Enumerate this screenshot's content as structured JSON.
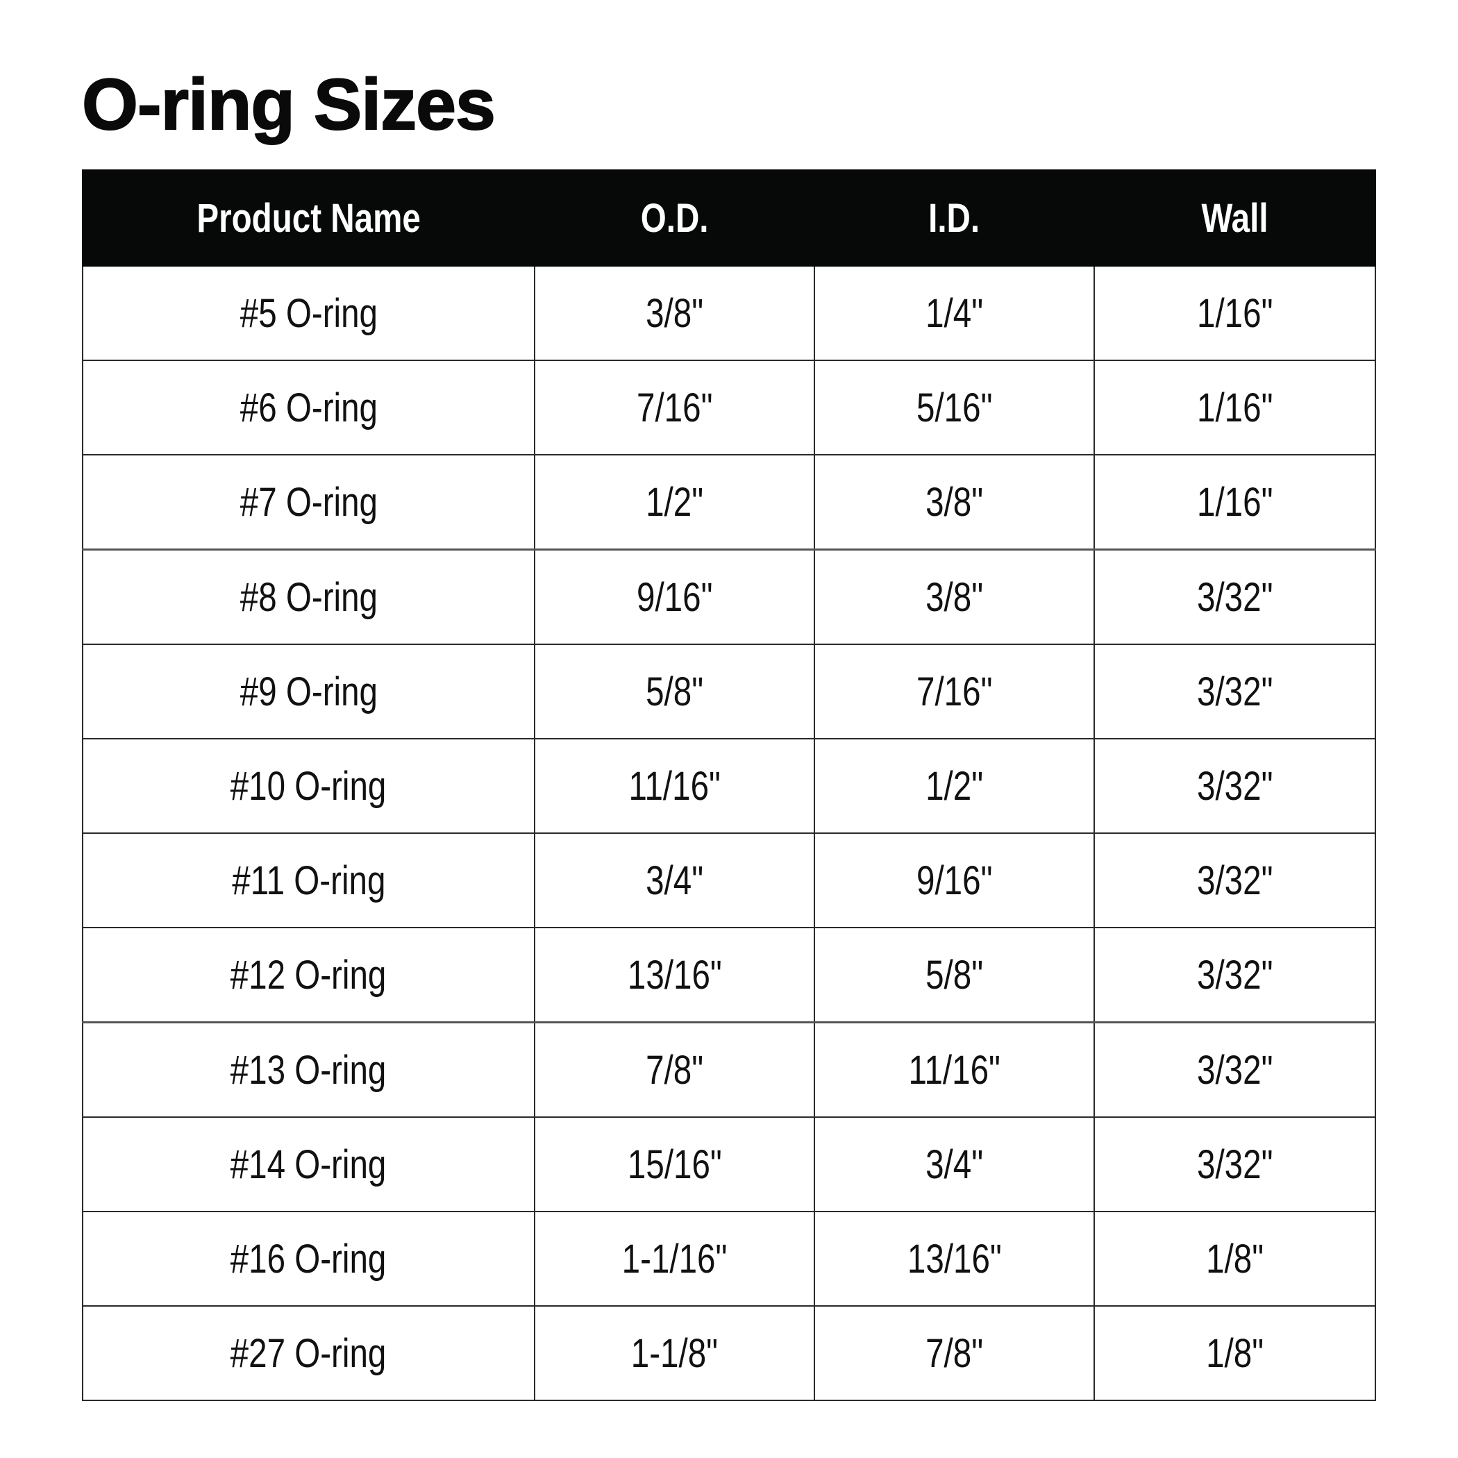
{
  "title": "O-ring Sizes",
  "table": {
    "headers": [
      "Product Name",
      "O.D.",
      "I.D.",
      "Wall"
    ],
    "rows": [
      [
        "#5 O-ring",
        "3/8\"",
        "1/4\"",
        "1/16\""
      ],
      [
        "#6 O-ring",
        "7/16\"",
        "5/16\"",
        "1/16\""
      ],
      [
        "#7 O-ring",
        "1/2\"",
        "3/8\"",
        "1/16\""
      ],
      [
        "#8 O-ring",
        "9/16\"",
        "3/8\"",
        "3/32\""
      ],
      [
        "#9 O-ring",
        "5/8\"",
        "7/16\"",
        "3/32\""
      ],
      [
        "#10 O-ring",
        "11/16\"",
        "1/2\"",
        "3/32\""
      ],
      [
        "#11 O-ring",
        "3/4\"",
        "9/16\"",
        "3/32\""
      ],
      [
        "#12 O-ring",
        "13/16\"",
        "5/8\"",
        "3/32\""
      ],
      [
        "#13 O-ring",
        "7/8\"",
        "11/16\"",
        "3/32\""
      ],
      [
        "#14 O-ring",
        "15/16\"",
        "3/4\"",
        "3/32\""
      ],
      [
        "#16 O-ring",
        "1-1/16\"",
        "13/16\"",
        "1/8\""
      ],
      [
        "#27 O-ring",
        "1-1/8\"",
        "7/8\"",
        "1/8\""
      ]
    ]
  }
}
